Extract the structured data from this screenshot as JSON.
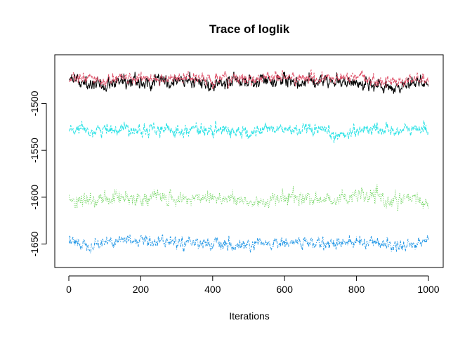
{
  "chart_data": {
    "type": "line",
    "title": "Trace of loglik",
    "xlabel": "Iterations",
    "ylabel": "",
    "xlim": [
      0,
      1000
    ],
    "ylim": [
      -1675,
      -1448
    ],
    "x_ticks": [
      0,
      200,
      400,
      600,
      800,
      1000
    ],
    "y_ticks": [
      -1500,
      -1550,
      -1600,
      -1650
    ],
    "grid": false,
    "legend": "none",
    "n_iterations": 1000,
    "series": [
      {
        "color": "#000000",
        "linestyle": "solid",
        "mean": -1476,
        "sd": 4,
        "x": [
          0,
          50,
          100,
          150,
          200,
          250,
          300,
          350,
          400,
          450,
          500,
          550,
          600,
          650,
          700,
          750,
          800,
          850,
          900,
          950,
          1000
        ],
        "values": [
          -1477,
          -1476,
          -1479,
          -1475,
          -1478,
          -1476,
          -1477,
          -1475,
          -1482,
          -1476,
          -1477,
          -1475,
          -1476,
          -1477,
          -1474,
          -1476,
          -1478,
          -1481,
          -1485,
          -1477,
          -1476
        ]
      },
      {
        "color": "#DF536B",
        "linestyle": "dashed",
        "mean": -1474,
        "sd": 3.5,
        "x": [
          0,
          50,
          100,
          150,
          200,
          250,
          300,
          350,
          400,
          450,
          500,
          550,
          600,
          650,
          700,
          750,
          800,
          850,
          900,
          950,
          1000
        ],
        "values": [
          -1475,
          -1473,
          -1476,
          -1472,
          -1474,
          -1473,
          -1474,
          -1472,
          -1476,
          -1473,
          -1475,
          -1471,
          -1472,
          -1474,
          -1473,
          -1474,
          -1472,
          -1476,
          -1477,
          -1474,
          -1475
        ]
      },
      {
        "color": "#28E2E5",
        "linestyle": "dashed",
        "mean": -1528,
        "sd": 3.5,
        "x": [
          0,
          50,
          100,
          150,
          200,
          250,
          300,
          350,
          400,
          450,
          500,
          550,
          600,
          650,
          700,
          750,
          800,
          850,
          900,
          950,
          1000
        ],
        "values": [
          -1529,
          -1530,
          -1528,
          -1526,
          -1527,
          -1528,
          -1529,
          -1527,
          -1530,
          -1528,
          -1533,
          -1526,
          -1528,
          -1529,
          -1530,
          -1535,
          -1528,
          -1527,
          -1529,
          -1528,
          -1526
        ]
      },
      {
        "color": "#61D04F",
        "linestyle": "dotted",
        "mean": -1601,
        "sd": 4,
        "x": [
          0,
          50,
          100,
          150,
          200,
          250,
          300,
          350,
          400,
          450,
          500,
          550,
          600,
          650,
          700,
          750,
          800,
          850,
          900,
          950,
          1000
        ],
        "values": [
          -1603,
          -1605,
          -1602,
          -1599,
          -1601,
          -1600,
          -1603,
          -1601,
          -1599,
          -1602,
          -1606,
          -1604,
          -1601,
          -1600,
          -1603,
          -1601,
          -1599,
          -1600,
          -1605,
          -1602,
          -1606
        ]
      },
      {
        "color": "#2297E6",
        "linestyle": "dashdot",
        "mean": -1649,
        "sd": 3.5,
        "x": [
          0,
          50,
          100,
          150,
          200,
          250,
          300,
          350,
          400,
          450,
          500,
          550,
          600,
          650,
          700,
          750,
          800,
          850,
          900,
          950,
          1000
        ],
        "values": [
          -1647,
          -1650,
          -1648,
          -1645,
          -1647,
          -1646,
          -1648,
          -1647,
          -1650,
          -1653,
          -1652,
          -1650,
          -1649,
          -1648,
          -1650,
          -1648,
          -1649,
          -1647,
          -1652,
          -1650,
          -1646
        ]
      }
    ]
  }
}
